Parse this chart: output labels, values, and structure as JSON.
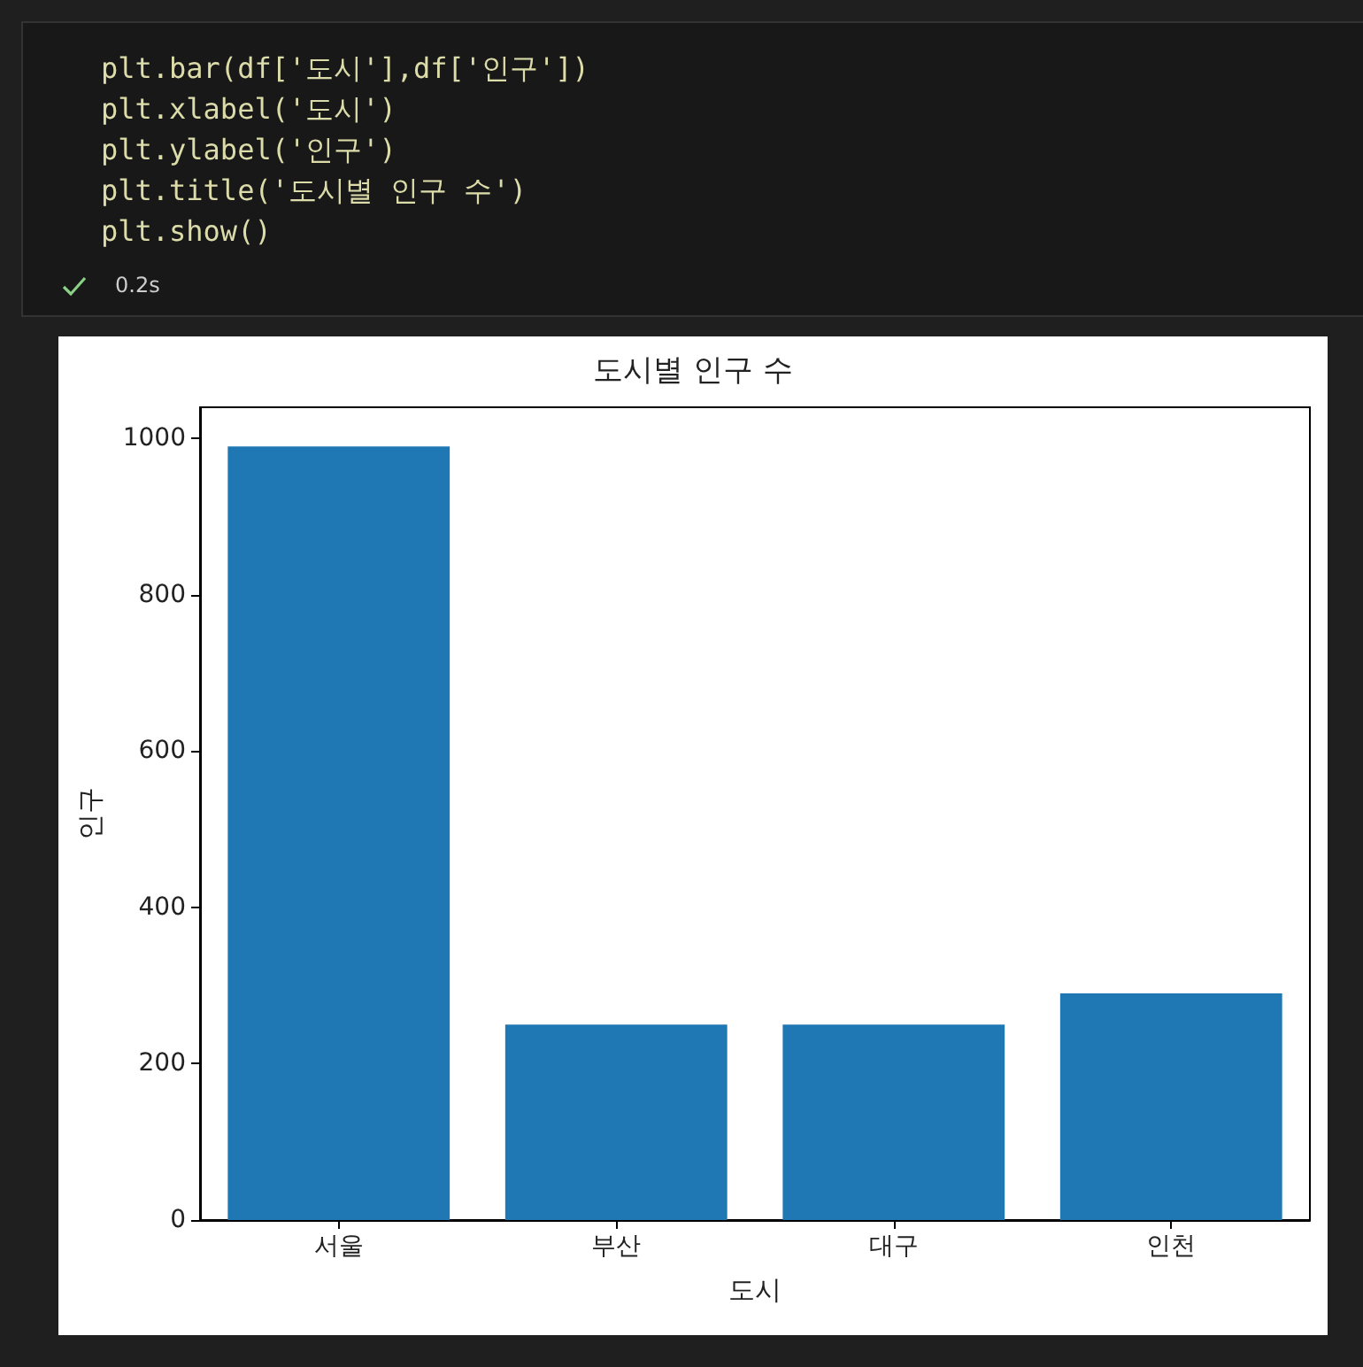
{
  "chart_data": {
    "type": "bar",
    "title": "도시별 인구 수",
    "xlabel": "도시",
    "ylabel": "인구",
    "categories": [
      "서울",
      "부산",
      "대구",
      "인천"
    ],
    "values": [
      990,
      250,
      250,
      290
    ],
    "color": "#1f77b4",
    "ylim": [
      0,
      1040
    ],
    "yticks": [
      0,
      200,
      400,
      600,
      800,
      1000
    ],
    "grid": false,
    "annotations": [
      "plt.bar(df['도시'],df['인구'])",
      "plt.xlabel('도시')",
      "plt.ylabel('인구')",
      "plt.title('도시별 인구 수')",
      "plt.show()",
      "0.2s"
    ]
  }
}
